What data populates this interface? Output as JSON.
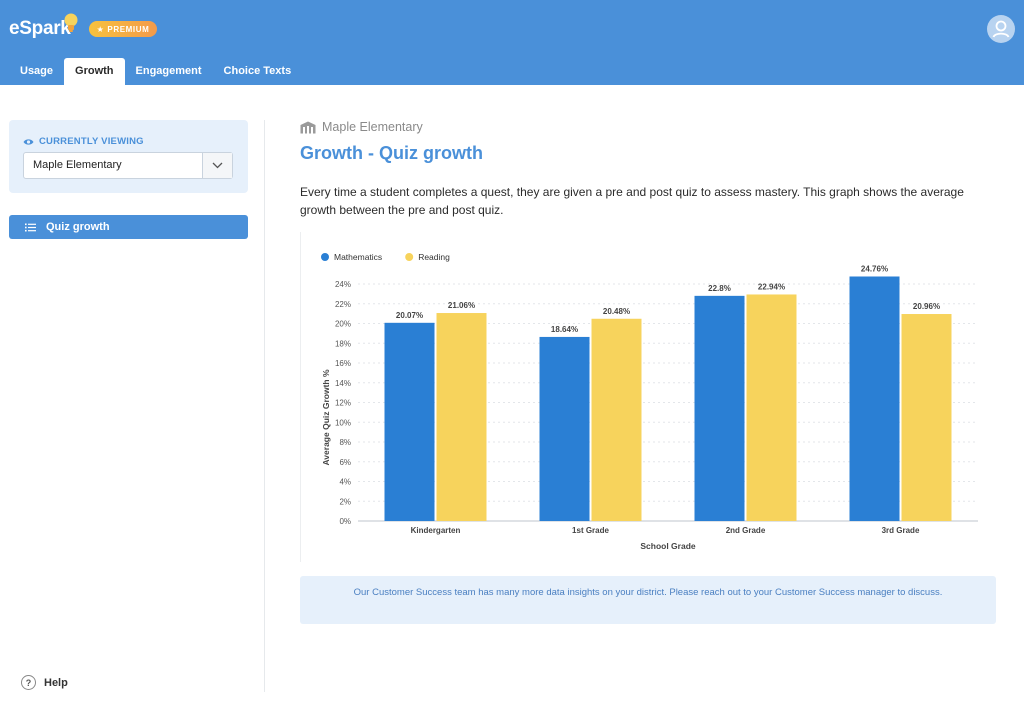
{
  "header": {
    "logo_text": "eSpark",
    "badge_label": "PREMIUM",
    "tabs": [
      {
        "label": "Usage",
        "active": false
      },
      {
        "label": "Growth",
        "active": true
      },
      {
        "label": "Engagement",
        "active": false
      },
      {
        "label": "Choice Texts",
        "active": false
      }
    ]
  },
  "sidebar": {
    "viewing_label": "CURRENTLY VIEWING",
    "selected_school": "Maple Elementary",
    "nav_item": "Quiz growth",
    "help_label": "Help"
  },
  "main": {
    "breadcrumb": "Maple Elementary",
    "title": "Growth - Quiz growth",
    "description": "Every time a student completes a quest, they are given a pre and post quiz to assess mastery. This graph shows the average growth between the pre and post quiz.",
    "banner": "Our Customer Success team has many more data insights on your district. Please reach out to your Customer Success manager to discuss."
  },
  "colors": {
    "brand_blue": "#4a90d9",
    "math_blue": "#2a7fd4",
    "reading_yellow": "#f7d35c"
  },
  "chart_data": {
    "type": "bar",
    "categories": [
      "Kindergarten",
      "1st Grade",
      "2nd Grade",
      "3rd Grade"
    ],
    "series": [
      {
        "name": "Mathematics",
        "values": [
          20.07,
          18.64,
          22.8,
          24.76
        ],
        "labels": [
          "20.07%",
          "18.64%",
          "22.8%",
          "24.76%"
        ],
        "color": "#2a7fd4"
      },
      {
        "name": "Reading",
        "values": [
          21.06,
          20.48,
          22.94,
          20.96
        ],
        "labels": [
          "21.06%",
          "20.48%",
          "22.94%",
          "20.96%"
        ],
        "color": "#f7d35c"
      }
    ],
    "yticks": [
      "0%",
      "2%",
      "4%",
      "6%",
      "8%",
      "10%",
      "12%",
      "14%",
      "16%",
      "18%",
      "20%",
      "22%",
      "24%"
    ],
    "ylim": [
      0,
      24
    ],
    "xlabel": "School Grade",
    "ylabel": "Average Quiz Growth %",
    "legend_position": "top-left",
    "grid": true
  }
}
